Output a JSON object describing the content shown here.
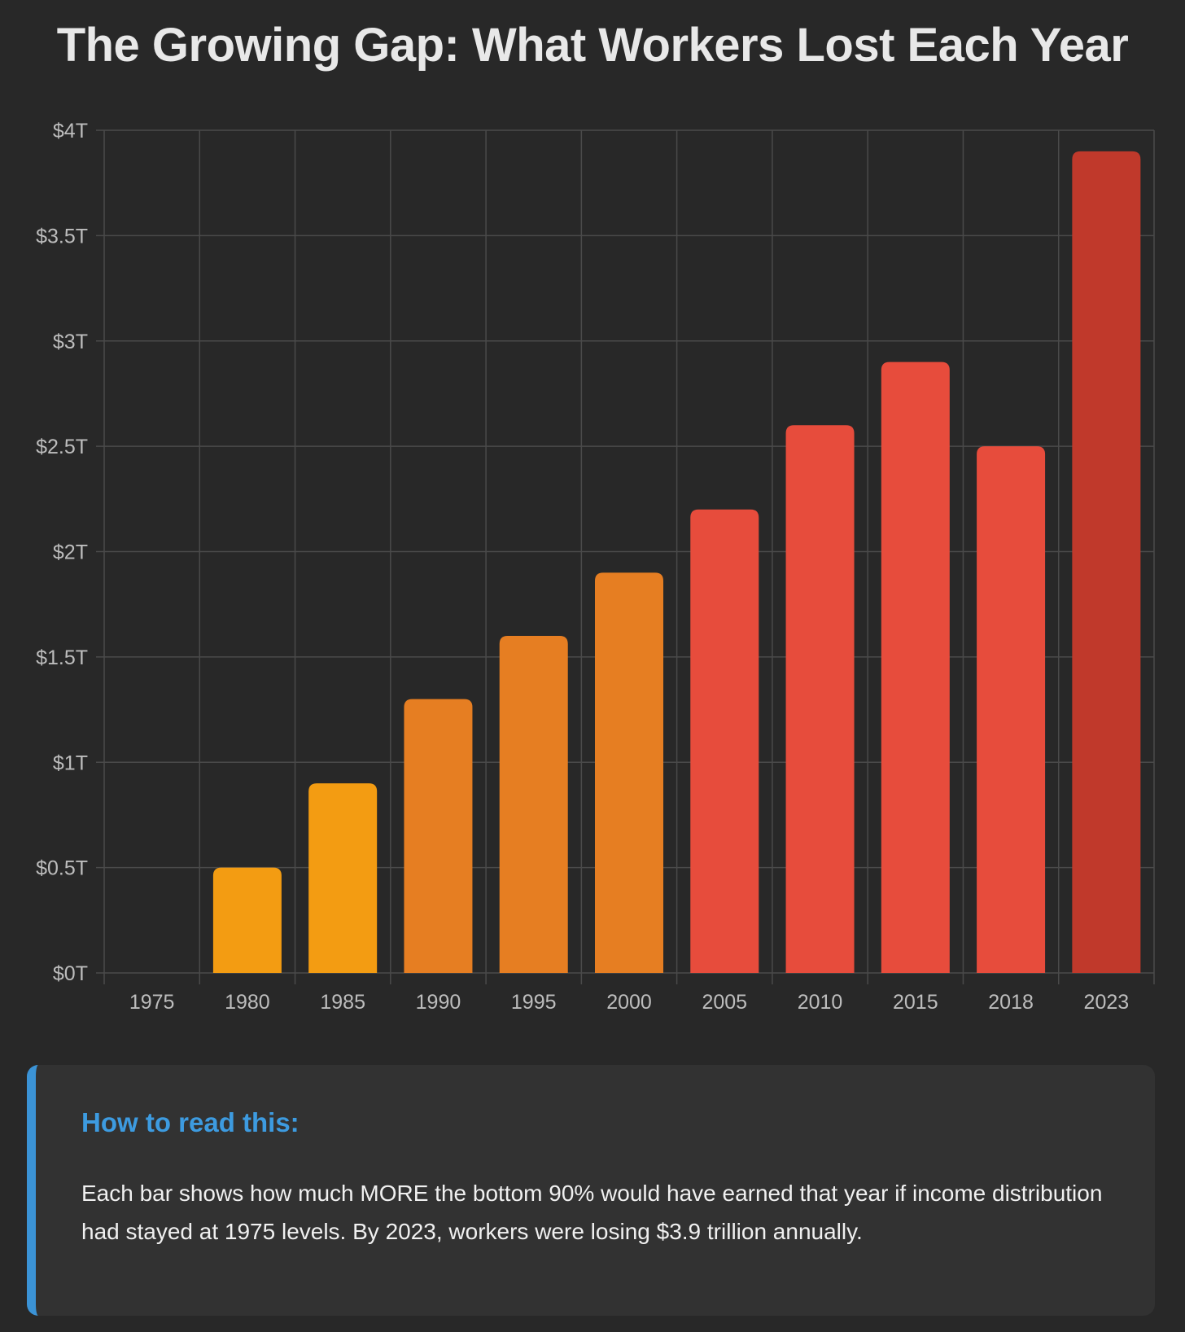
{
  "title": "The Growing Gap: What Workers Lost Each Year",
  "chart_data": {
    "type": "bar",
    "title": "The Growing Gap: What Workers Lost Each Year",
    "xlabel": "",
    "ylabel": "",
    "categories": [
      "1975",
      "1980",
      "1985",
      "1990",
      "1995",
      "2000",
      "2005",
      "2010",
      "2015",
      "2018",
      "2023"
    ],
    "values": [
      0,
      0.5,
      0.9,
      1.3,
      1.6,
      1.9,
      2.2,
      2.6,
      2.9,
      2.5,
      3.9
    ],
    "value_unit": "trillion USD",
    "ylim": [
      0,
      4
    ],
    "y_ticks": [
      0,
      0.5,
      1,
      1.5,
      2,
      2.5,
      3,
      3.5,
      4
    ],
    "y_tick_labels": [
      "$0T",
      "$0.5T",
      "$1T",
      "$1.5T",
      "$2T",
      "$2.5T",
      "$3T",
      "$3.5T",
      "$4T"
    ],
    "bar_colors": [
      "#f39c12",
      "#f39c12",
      "#f39c12",
      "#e67e22",
      "#e67e22",
      "#e67e22",
      "#e74c3c",
      "#e74c3c",
      "#e74c3c",
      "#e74c3c",
      "#c0392b"
    ],
    "grid": true,
    "legend": "none"
  },
  "colors": {
    "background": "#282828",
    "grid": "#4a4a4a",
    "tick_text": "#bdbdbd",
    "note_background": "#323232",
    "note_accent": "#3b93d6",
    "note_heading": "#3d9be0"
  },
  "note": {
    "heading": "How to read this:",
    "body": "Each bar shows how much MORE the bottom 90% would have earned that year if income distribution had stayed at 1975 levels. By 2023, workers were losing $3.9 trillion annually."
  }
}
